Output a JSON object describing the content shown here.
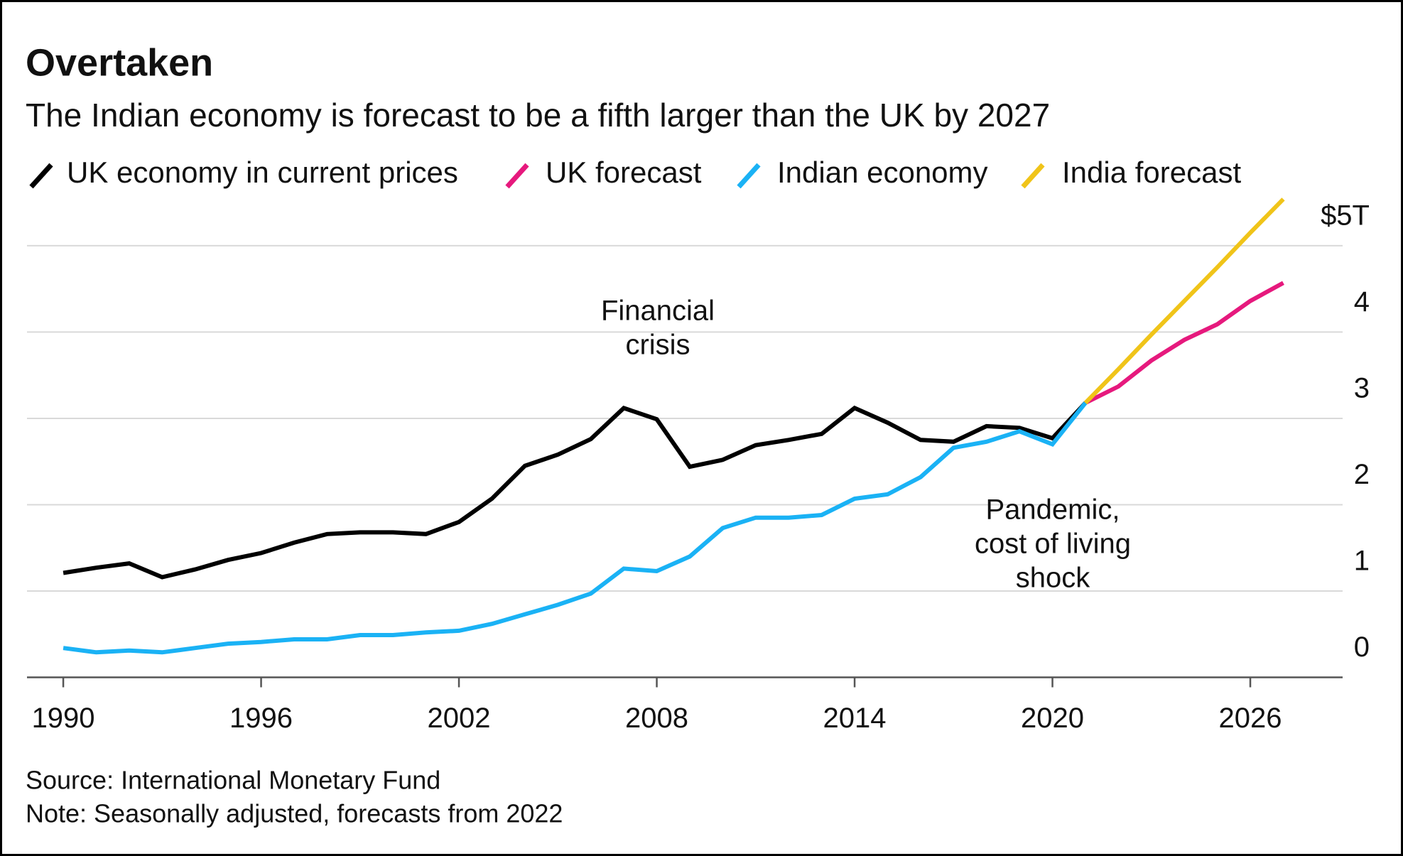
{
  "chart_data": {
    "type": "line",
    "title": "Overtaken",
    "subtitle": "The Indian economy is forecast to be a fifth larger than the UK by 2027",
    "x": [
      1990,
      1991,
      1992,
      1993,
      1994,
      1995,
      1996,
      1997,
      1998,
      1999,
      2000,
      2001,
      2002,
      2003,
      2004,
      2005,
      2006,
      2007,
      2008,
      2009,
      2010,
      2011,
      2012,
      2013,
      2014,
      2015,
      2016,
      2017,
      2018,
      2019,
      2020,
      2021,
      2022,
      2023,
      2024,
      2025,
      2026,
      2027
    ],
    "series": [
      {
        "name": "UK economy in current prices",
        "color": "#000000",
        "values": [
          1.21,
          1.27,
          1.32,
          1.16,
          1.25,
          1.36,
          1.44,
          1.56,
          1.66,
          1.68,
          1.68,
          1.66,
          1.8,
          2.07,
          2.45,
          2.58,
          2.76,
          3.12,
          2.99,
          2.44,
          2.52,
          2.69,
          2.75,
          2.82,
          3.12,
          2.95,
          2.75,
          2.73,
          2.91,
          2.89,
          2.77,
          3.18,
          null,
          null,
          null,
          null,
          null,
          null
        ]
      },
      {
        "name": "UK forecast",
        "color": "#e6197d",
        "values": [
          null,
          null,
          null,
          null,
          null,
          null,
          null,
          null,
          null,
          null,
          null,
          null,
          null,
          null,
          null,
          null,
          null,
          null,
          null,
          null,
          null,
          null,
          null,
          null,
          null,
          null,
          null,
          null,
          null,
          null,
          null,
          3.18,
          3.37,
          3.67,
          3.91,
          4.09,
          4.36,
          4.57
        ]
      },
      {
        "name": "Indian economy",
        "color": "#1ab2f5",
        "values": [
          0.34,
          0.29,
          0.31,
          0.29,
          0.34,
          0.39,
          0.41,
          0.44,
          0.44,
          0.49,
          0.49,
          0.52,
          0.54,
          0.62,
          0.73,
          0.84,
          0.97,
          1.26,
          1.23,
          1.4,
          1.73,
          1.85,
          1.85,
          1.88,
          2.07,
          2.12,
          2.32,
          2.66,
          2.73,
          2.85,
          2.7,
          3.18,
          null,
          null,
          null,
          null,
          null,
          null
        ]
      },
      {
        "name": "India forecast",
        "color": "#f0c419",
        "values": [
          null,
          null,
          null,
          null,
          null,
          null,
          null,
          null,
          null,
          null,
          null,
          null,
          null,
          null,
          null,
          null,
          null,
          null,
          null,
          null,
          null,
          null,
          null,
          null,
          null,
          null,
          null,
          null,
          null,
          null,
          null,
          3.18,
          3.57,
          3.97,
          4.36,
          4.75,
          5.15,
          5.54
        ]
      }
    ],
    "xlim": [
      1988.9,
      2028.8
    ],
    "xticks": [
      1990,
      1996,
      2002,
      2008,
      2014,
      2020,
      2026
    ],
    "ylim": [
      0,
      5.6
    ],
    "yticks": [
      0,
      1,
      2,
      3,
      4,
      {
        "value": 5,
        "label": "$5T"
      }
    ],
    "grid": true,
    "annotations": [
      {
        "lines": [
          "Financial",
          "crisis"
        ]
      },
      {
        "lines": [
          "Pandemic,",
          "cost of living",
          "shock"
        ]
      }
    ],
    "source": "Source: International Monetary Fund",
    "note": "Note: Seasonally adjusted, forecasts from 2022"
  }
}
